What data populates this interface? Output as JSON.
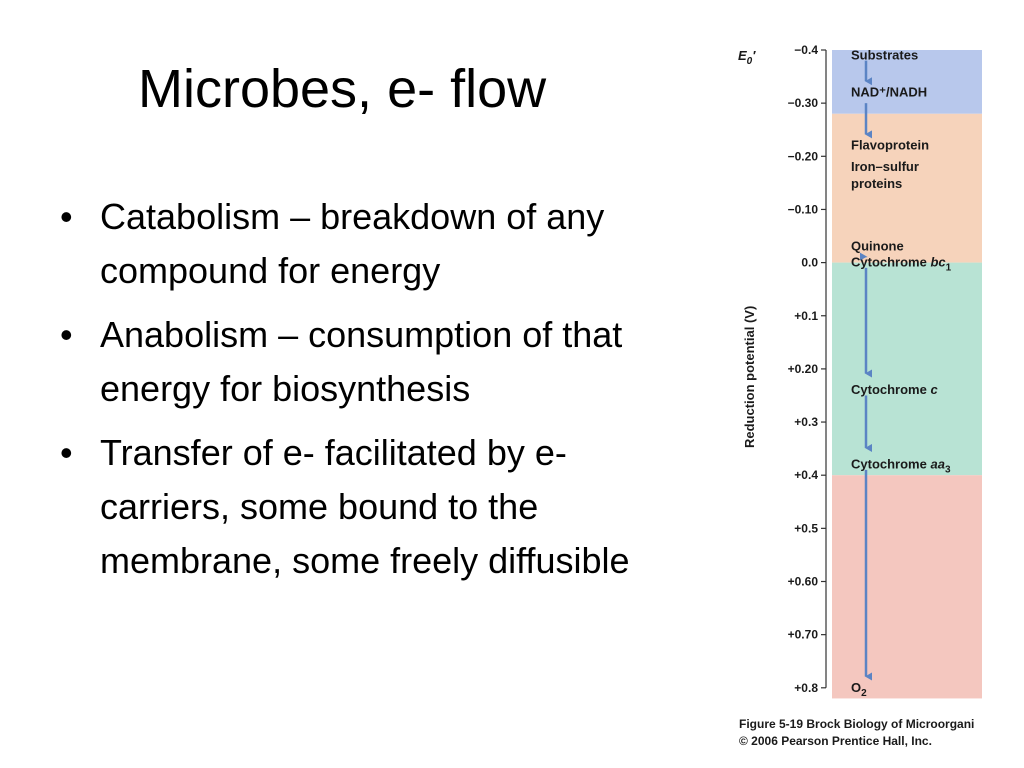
{
  "slide": {
    "title": "Microbes, e- flow",
    "bullets": [
      {
        "text": "Catabolism – breakdown of any compound for energy"
      },
      {
        "text": "Anabolism – consumption of that energy for biosynthesis"
      },
      {
        "text": "Transfer of e- facilitated by e- carriers, some bound to the membrane, some freely diffusible"
      }
    ],
    "bullet_symbol": "•"
  },
  "figure": {
    "axis_symbol": "E",
    "axis_symbol_sub": "0",
    "axis_symbol_prime": "′",
    "axis_label": "Reduction potential  (V)",
    "ticks": [
      {
        "label": "−0.4",
        "value": -0.4
      },
      {
        "label": "−0.30",
        "value": -0.3
      },
      {
        "label": "−0.20",
        "value": -0.2
      },
      {
        "label": "−0.10",
        "value": -0.1
      },
      {
        "label": "0.0",
        "value": 0.0
      },
      {
        "label": "+0.1",
        "value": 0.1
      },
      {
        "label": "+0.20",
        "value": 0.2
      },
      {
        "label": "+0.3",
        "value": 0.3
      },
      {
        "label": "+0.4",
        "value": 0.4
      },
      {
        "label": "+0.5",
        "value": 0.5
      },
      {
        "label": "+0.60",
        "value": 0.6
      },
      {
        "label": "+0.70",
        "value": 0.7
      },
      {
        "label": "+0.8",
        "value": 0.8
      }
    ],
    "bands": [
      {
        "from": -0.4,
        "to": -0.28,
        "color": "#b8c8ec"
      },
      {
        "from": -0.28,
        "to": 0.0,
        "color": "#f6d3bb"
      },
      {
        "from": 0.0,
        "to": 0.4,
        "color": "#b8e3d4"
      },
      {
        "from": 0.4,
        "to": 0.82,
        "color": "#f4c7bf"
      }
    ],
    "arrow_color": "#5b84c4",
    "carriers": [
      {
        "name": "Substrates",
        "value": -0.39
      },
      {
        "name": "NAD⁺/NADH",
        "value": -0.32
      },
      {
        "name": "Flavoprotein",
        "value": -0.22
      },
      {
        "name": "Iron–sulfur",
        "name2": "proteins",
        "value": -0.18
      },
      {
        "name": "Quinone",
        "value": -0.03
      },
      {
        "name": "Cytochrome ",
        "italic": "bc",
        "sub": "1",
        "value": 0.0
      },
      {
        "name": "Cytochrome ",
        "italic": "c",
        "value": 0.24
      },
      {
        "name": "Cytochrome ",
        "italic": "aa",
        "sub": "3",
        "value": 0.38
      },
      {
        "name": "O",
        "sub": "2",
        "value": 0.8
      }
    ],
    "arrows": [
      {
        "from": -0.38,
        "to": -0.33
      },
      {
        "from": -0.3,
        "to": -0.23
      },
      {
        "from": -0.01,
        "to": 0.0
      },
      {
        "from": 0.01,
        "to": 0.22
      },
      {
        "from": 0.25,
        "to": 0.36
      },
      {
        "from": 0.39,
        "to": 0.79
      }
    ],
    "caption_line1": "Figure 5-19  Brock Biology of Microorgani",
    "caption_line2": "© 2006 Pearson Prentice Hall, Inc."
  }
}
